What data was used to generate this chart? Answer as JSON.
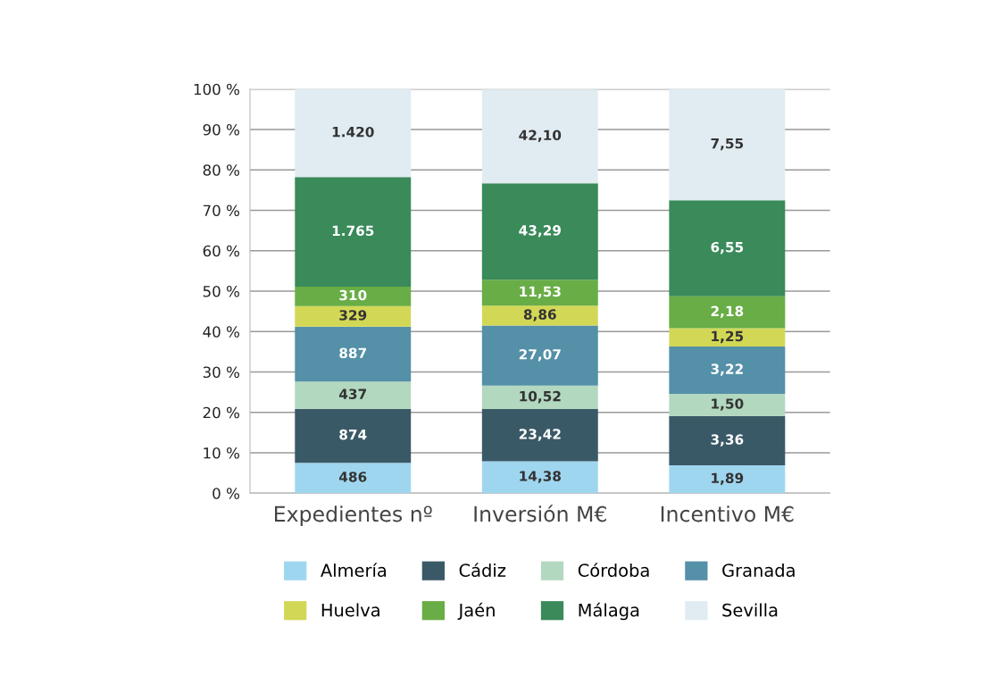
{
  "chart_data": {
    "type": "bar",
    "stacked": true,
    "categories": [
      "Expedientes nº",
      "Inversión M€",
      "Incentivo M€"
    ],
    "series": [
      {
        "name": "Almería",
        "color": "#9fd6ef",
        "values": [
          7.5,
          7.9,
          6.9
        ]
      },
      {
        "name": "Cádiz",
        "color": "#3a5966",
        "values": [
          13.4,
          12.9,
          12.2
        ]
      },
      {
        "name": "Córdoba",
        "color": "#b2d8c0",
        "values": [
          6.7,
          5.8,
          5.5
        ]
      },
      {
        "name": "Granada",
        "color": "#5490a8",
        "values": [
          13.6,
          14.9,
          11.7
        ]
      },
      {
        "name": "Huelva",
        "color": "#d2d855",
        "values": [
          5.1,
          4.9,
          4.5
        ]
      },
      {
        "name": "Jaén",
        "color": "#68ad45",
        "values": [
          4.8,
          6.4,
          7.9
        ]
      },
      {
        "name": "Málaga",
        "color": "#3a8a5a",
        "values": [
          27.1,
          23.9,
          23.8
        ]
      },
      {
        "name": "Sevilla",
        "color": "#e0ecf1",
        "values": [
          21.8,
          23.2,
          27.5
        ]
      }
    ],
    "annotations": [
      "486",
      "874",
      "437",
      "887",
      "329",
      "310",
      "1.765",
      "1.420",
      "14,38",
      "23,42",
      "10,52",
      "27,07",
      "8,86",
      "11,53",
      "43,29",
      "42,10",
      "1,89",
      "3,36",
      "1,50",
      "3,22",
      "1,25",
      "2,18",
      "6,55",
      "7,55"
    ],
    "ylim": [
      0,
      100
    ],
    "yticks": [
      {
        "value": 0,
        "label": "0 %"
      },
      {
        "value": 10,
        "label": "10 %"
      },
      {
        "value": 20,
        "label": "20 %"
      },
      {
        "value": 30,
        "label": "30 %"
      },
      {
        "value": 40,
        "label": "40 %"
      },
      {
        "value": 50,
        "label": "50 %"
      },
      {
        "value": 60,
        "label": "60 %"
      },
      {
        "value": 70,
        "label": "70 %"
      },
      {
        "value": 80,
        "label": "80 %"
      },
      {
        "value": 90,
        "label": "90 %"
      },
      {
        "value": 100,
        "label": "100 %"
      }
    ],
    "grid": "y",
    "legend": "bottom"
  }
}
